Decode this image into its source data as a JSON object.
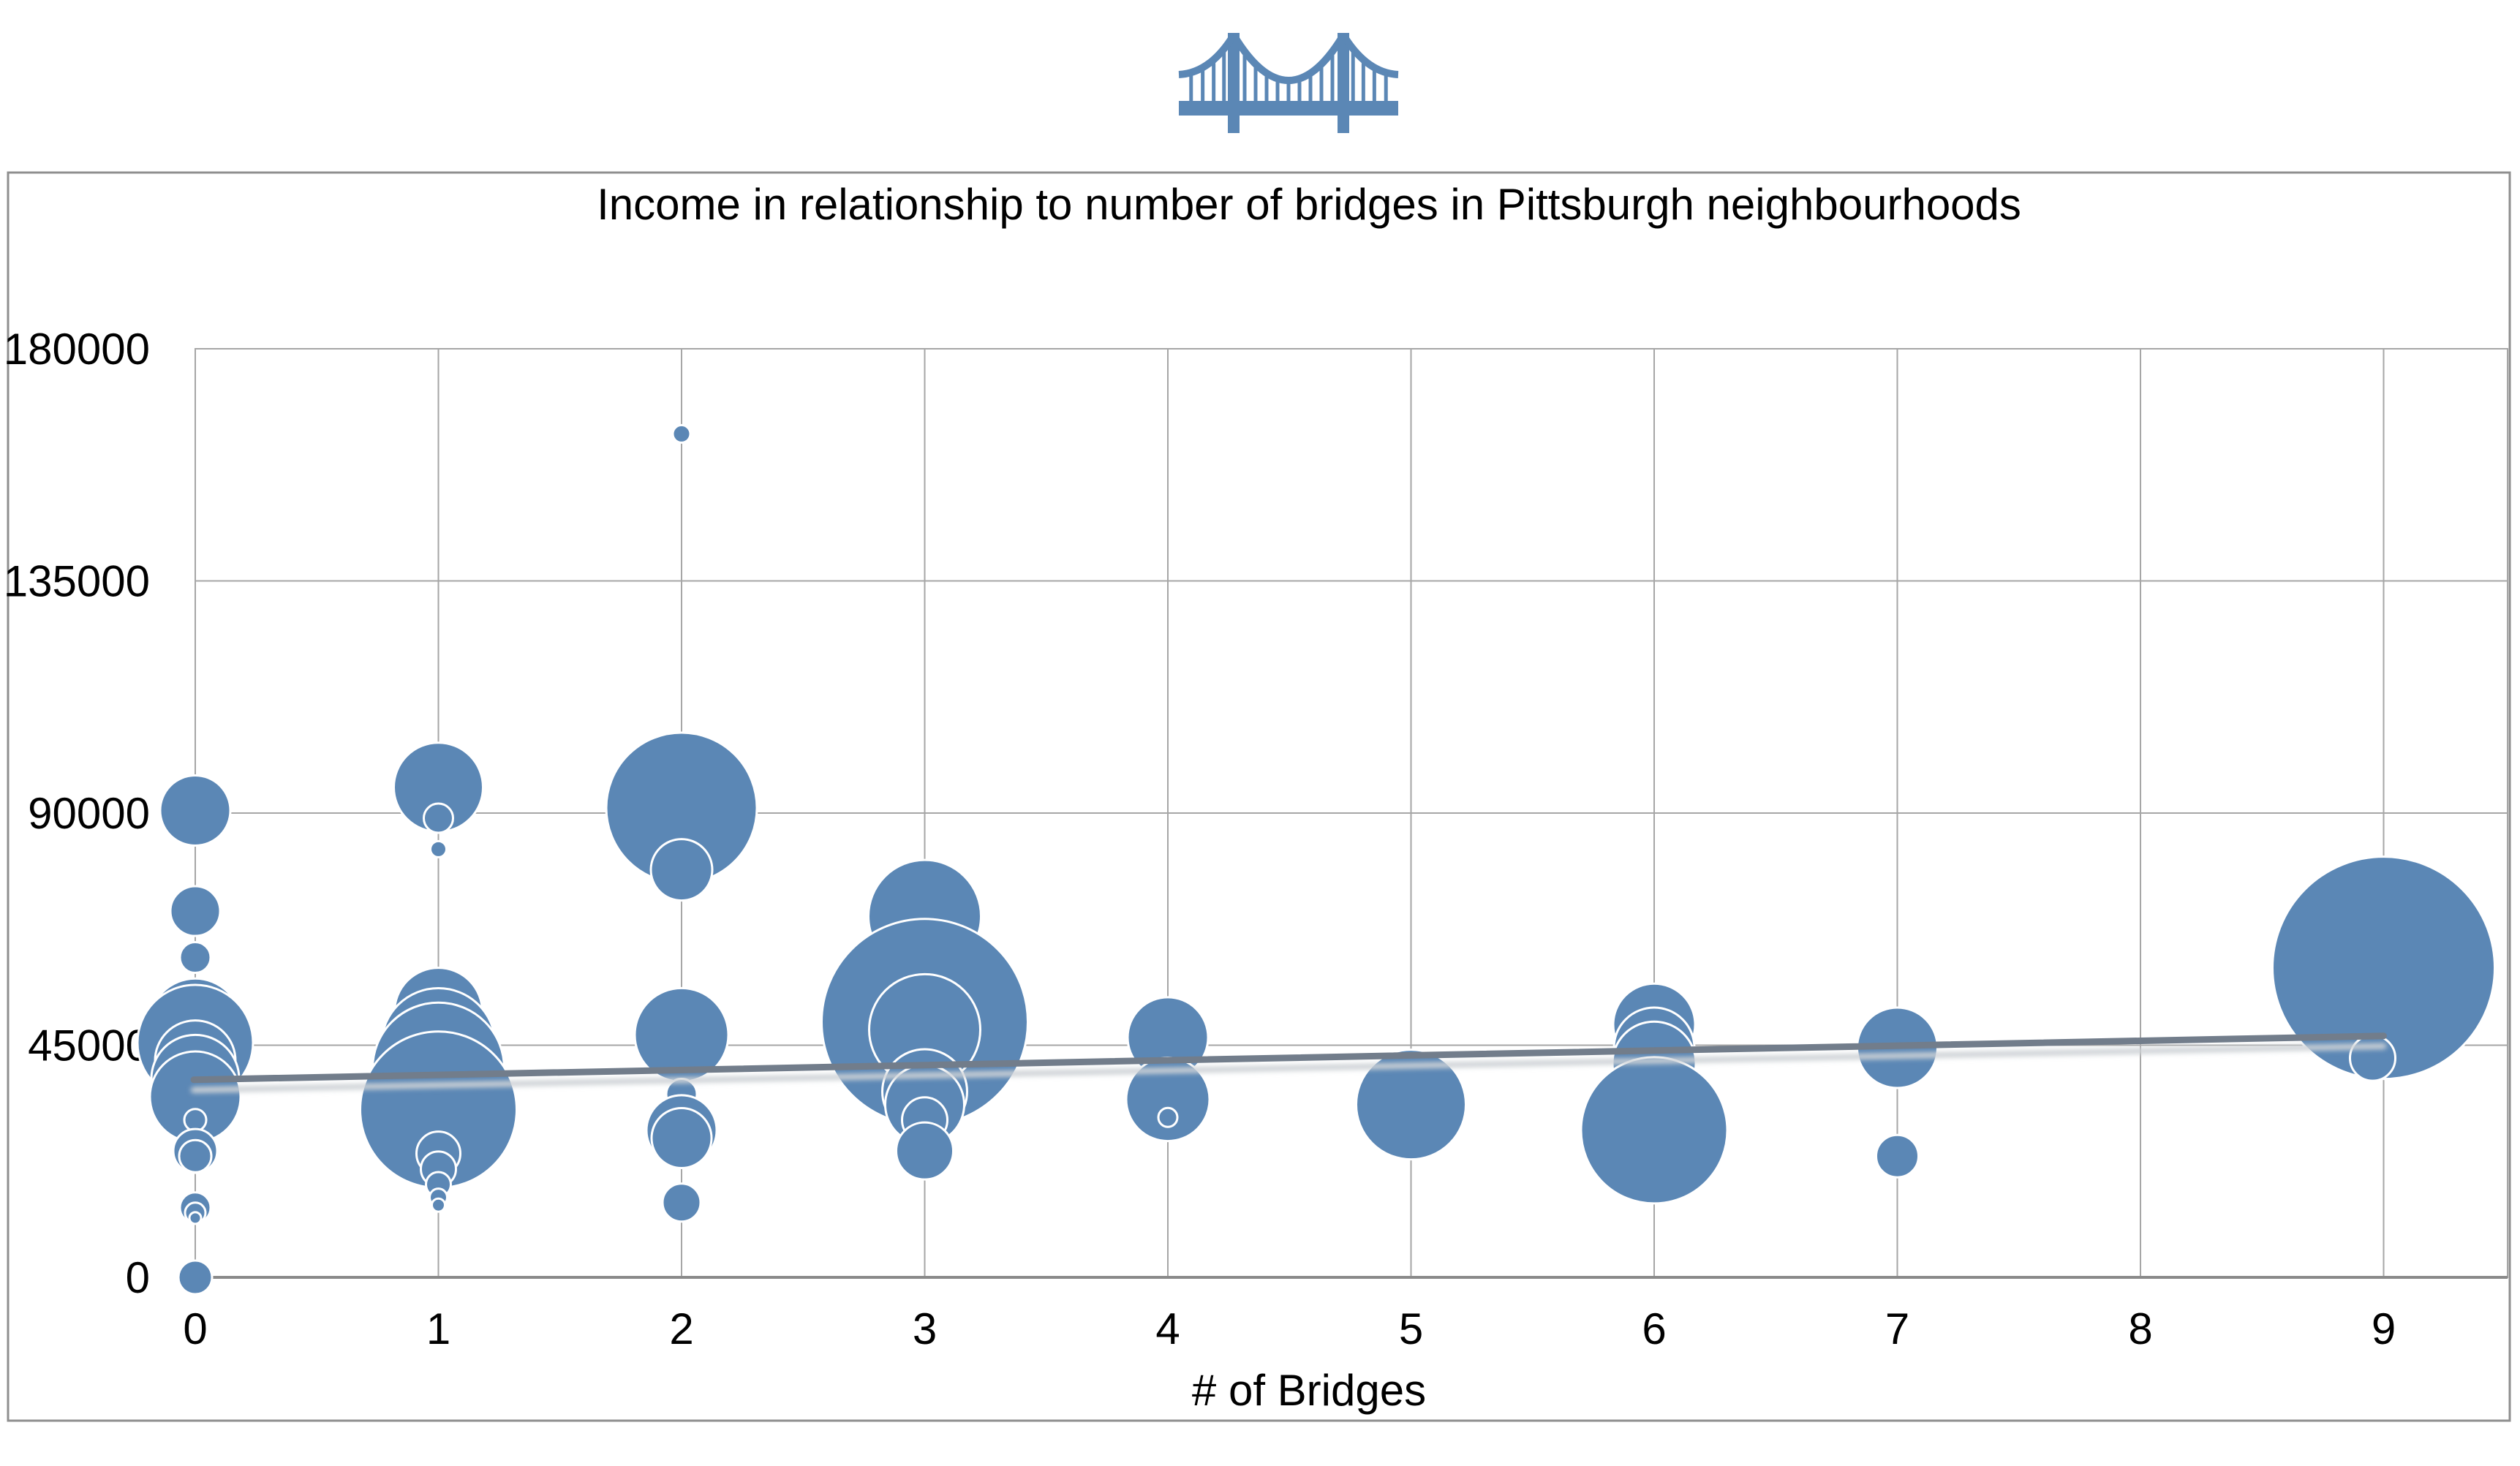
{
  "title": "Income in relationship to number of bridges in Pittsburgh neighbourhoods",
  "x_axis": {
    "label": "# of Bridges",
    "ticks": [
      "0",
      "1",
      "2",
      "3",
      "4",
      "5",
      "6",
      "7",
      "8",
      "9"
    ]
  },
  "y_axis": {
    "ticks": [
      "0",
      "45000",
      "90000",
      "135000",
      "180000"
    ]
  },
  "colors": {
    "bubble": "#5B87B5",
    "bubble_outline": "#FFFFFF",
    "gridline": "#A6A6A6",
    "axis_line": "#8A8A8A",
    "frame": "#8F8F8F",
    "trend": "#727D8B",
    "trend_shadow": "#CED2D6",
    "text": "#000000",
    "icon": "#5B87B5"
  },
  "chart_data": {
    "type": "scatter",
    "subtype": "bubble",
    "title": "Income in relationship to number of bridges in Pittsburgh neighbourhoods",
    "xlabel": "# of Bridges",
    "ylabel": "",
    "x_range": [
      0,
      9.5
    ],
    "y_range": [
      0,
      180000
    ],
    "x_ticks": [
      0,
      1,
      2,
      3,
      4,
      5,
      6,
      7,
      8,
      9
    ],
    "y_ticks": [
      0,
      45000,
      90000,
      135000,
      180000
    ],
    "grid": true,
    "legend": "none",
    "points": [
      {
        "bridges": 0,
        "income": 90500,
        "r": 48
      },
      {
        "bridges": 0,
        "income": 71000,
        "r": 34
      },
      {
        "bridges": 0,
        "income": 62000,
        "r": 21
      },
      {
        "bridges": 0,
        "income": 49000,
        "r": 63
      },
      {
        "bridges": 0,
        "income": 45500,
        "r": 79
      },
      {
        "bridges": 0,
        "income": 42000,
        "r": 55
      },
      {
        "bridges": 0,
        "income": 38500,
        "r": 60
      },
      {
        "bridges": 0,
        "income": 35000,
        "r": 62
      },
      {
        "bridges": 0,
        "income": 30500,
        "r": 15
      },
      {
        "bridges": 0,
        "income": 24500,
        "r": 30
      },
      {
        "bridges": 0,
        "income": 23500,
        "r": 22
      },
      {
        "bridges": 0,
        "income": 13500,
        "r": 21
      },
      {
        "bridges": 0,
        "income": 12500,
        "r": 14
      },
      {
        "bridges": 0,
        "income": 11500,
        "r": 8
      },
      {
        "bridges": 0,
        "income": 0,
        "r": 23
      },
      {
        "bridges": 1,
        "income": 95000,
        "r": 61
      },
      {
        "bridges": 1,
        "income": 89000,
        "r": 20
      },
      {
        "bridges": 1,
        "income": 83000,
        "r": 11
      },
      {
        "bridges": 1,
        "income": 51500,
        "r": 60
      },
      {
        "bridges": 1,
        "income": 45000,
        "r": 78
      },
      {
        "bridges": 1,
        "income": 40500,
        "r": 90
      },
      {
        "bridges": 1,
        "income": 32500,
        "r": 107
      },
      {
        "bridges": 1,
        "income": 24000,
        "r": 30
      },
      {
        "bridges": 1,
        "income": 21000,
        "r": 24
      },
      {
        "bridges": 1,
        "income": 18000,
        "r": 17
      },
      {
        "bridges": 1,
        "income": 15500,
        "r": 12
      },
      {
        "bridges": 1,
        "income": 14000,
        "r": 9
      },
      {
        "bridges": 2,
        "income": 163500,
        "r": 12
      },
      {
        "bridges": 2,
        "income": 91000,
        "r": 103
      },
      {
        "bridges": 2,
        "income": 79000,
        "r": 42
      },
      {
        "bridges": 2,
        "income": 47000,
        "r": 64
      },
      {
        "bridges": 2,
        "income": 35500,
        "r": 21
      },
      {
        "bridges": 2,
        "income": 28500,
        "r": 48
      },
      {
        "bridges": 2,
        "income": 27000,
        "r": 41
      },
      {
        "bridges": 2,
        "income": 14500,
        "r": 26
      },
      {
        "bridges": 3,
        "income": 70000,
        "r": 77
      },
      {
        "bridges": 3,
        "income": 49500,
        "r": 141
      },
      {
        "bridges": 3,
        "income": 48000,
        "r": 76
      },
      {
        "bridges": 3,
        "income": 36000,
        "r": 58
      },
      {
        "bridges": 3,
        "income": 33500,
        "r": 54
      },
      {
        "bridges": 3,
        "income": 30500,
        "r": 31
      },
      {
        "bridges": 3,
        "income": 24500,
        "r": 39
      },
      {
        "bridges": 4,
        "income": 46500,
        "r": 55
      },
      {
        "bridges": 4,
        "income": 34500,
        "r": 57
      },
      {
        "bridges": 4,
        "income": 31000,
        "r": 13
      },
      {
        "bridges": 5,
        "income": 33500,
        "r": 75
      },
      {
        "bridges": 6,
        "income": 49000,
        "r": 56
      },
      {
        "bridges": 6,
        "income": 44500,
        "r": 55
      },
      {
        "bridges": 6,
        "income": 41500,
        "r": 57
      },
      {
        "bridges": 6,
        "income": 28500,
        "r": 100
      },
      {
        "bridges": 7,
        "income": 44500,
        "r": 55
      },
      {
        "bridges": 7,
        "income": 23500,
        "r": 29
      },
      {
        "bridges": 9,
        "income": 60000,
        "r": 152
      },
      {
        "bridges": 9,
        "income": 42500,
        "r": 31,
        "dx": -15
      }
    ],
    "trend_line": {
      "x0_bridges": 0,
      "y0_income": 38300,
      "x1_bridges": 9,
      "y1_income": 46800
    }
  }
}
